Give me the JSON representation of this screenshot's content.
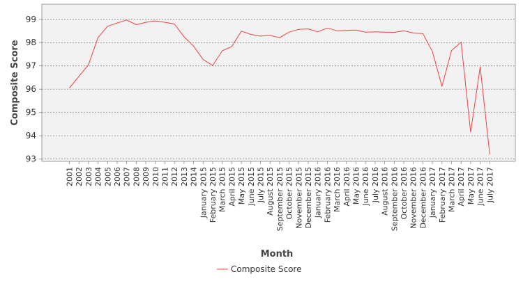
{
  "chart_data": {
    "type": "line",
    "title": "",
    "xlabel": "Month",
    "ylabel": "Composite Score",
    "ylim": [
      92.9,
      99.65
    ],
    "yticks": [
      93,
      94,
      95,
      96,
      97,
      98,
      99
    ],
    "grid": true,
    "legend_position": "bottom",
    "categories": [
      "2001",
      "2002",
      "2003",
      "2004",
      "2005",
      "2006",
      "2007",
      "2008",
      "2009",
      "2010",
      "2011",
      "2012",
      "2013",
      "2014",
      "January 2015",
      "February 2015",
      "March 2015",
      "April 2015",
      "May 2015",
      "June 2015",
      "July 2015",
      "August 2015",
      "September 2015",
      "October 2015",
      "November 2015",
      "December 2015",
      "January 2016",
      "February 2016",
      "March 2016",
      "April 2016",
      "May 2016",
      "June 2016",
      "July 2016",
      "August 2016",
      "September 2016",
      "October 2016",
      "November 2016",
      "December 2016",
      "January 2017",
      "February 2017",
      "March 2017",
      "April 2017",
      "May 2017",
      "June 2017",
      "July 2017"
    ],
    "series": [
      {
        "name": "Composite Score",
        "color": "#f04040",
        "values": [
          96.05,
          96.55,
          97.05,
          98.22,
          98.7,
          98.84,
          98.97,
          98.77,
          98.87,
          98.93,
          98.87,
          98.8,
          98.25,
          97.85,
          97.27,
          97.02,
          97.65,
          97.83,
          98.49,
          98.35,
          98.28,
          98.31,
          98.21,
          98.45,
          98.57,
          98.59,
          98.46,
          98.63,
          98.51,
          98.52,
          98.54,
          98.45,
          98.46,
          98.45,
          98.44,
          98.51,
          98.41,
          98.39,
          97.62,
          96.12,
          97.66,
          98.02,
          94.15,
          96.96,
          93.2
        ]
      }
    ]
  }
}
